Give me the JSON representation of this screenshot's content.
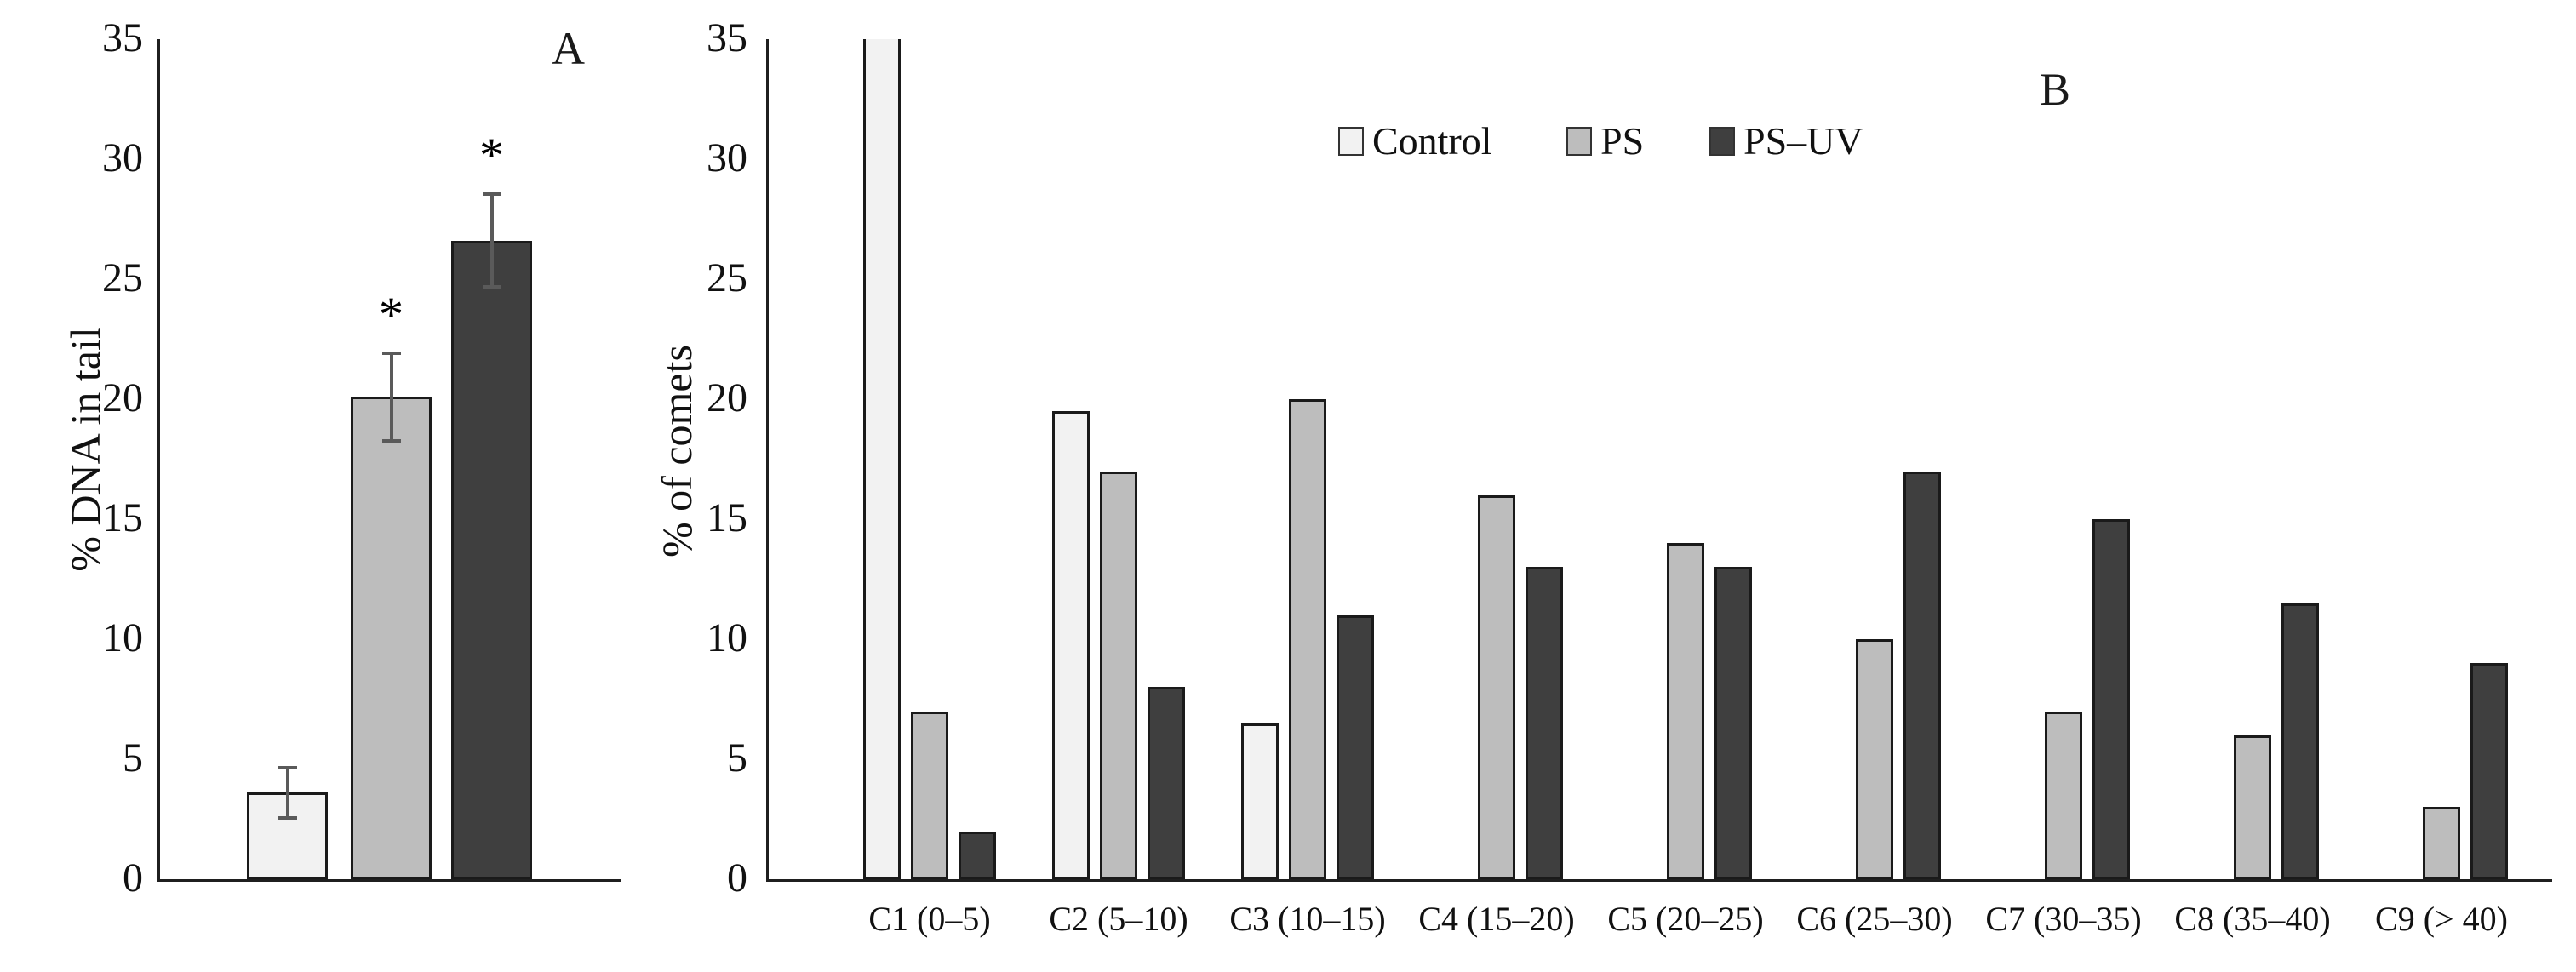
{
  "figure": {
    "background": "#ffffff",
    "axis_color": "#1f1f1f",
    "error_bar_color": "#5a5a5a"
  },
  "chart_data": [
    {
      "type": "bar",
      "panel_letter": "A",
      "ylabel": "% DNA in tail",
      "ylim": [
        0,
        35
      ],
      "ytick_step": 5,
      "grid": false,
      "categories": [
        "Control",
        "PS",
        "PS-UV"
      ],
      "values": [
        3.6,
        20.1,
        26.6
      ],
      "errors": [
        1.1,
        1.9,
        2.0
      ],
      "significance": [
        "",
        "*",
        "*"
      ],
      "bar_colors": [
        "#f2f2f2",
        "#bdbdbd",
        "#3f3f3f"
      ]
    },
    {
      "type": "bar",
      "panel_letter": "B",
      "ylabel": "% of comets",
      "ylim": [
        0,
        35
      ],
      "ytick_step": 5,
      "grid": false,
      "legend_position": "top",
      "categories": [
        "C1 (0–5)",
        "C2 (5–10)",
        "C3 (10–15)",
        "C4 (15–20)",
        "C5 (20–25)",
        "C6 (25–30)",
        "C7 (30–35)",
        "C8 (35–40)",
        "C9 (> 40)"
      ],
      "series": [
        {
          "name": "Control",
          "color": "#f2f2f2",
          "values": [
            35,
            19.5,
            6.5,
            0,
            0,
            0,
            0,
            0,
            0
          ],
          "clipped_at_axis_max": [
            true,
            false,
            false,
            false,
            false,
            false,
            false,
            false,
            false
          ]
        },
        {
          "name": "PS",
          "color": "#bdbdbd",
          "values": [
            7,
            17,
            20,
            16,
            14,
            10,
            7,
            6,
            3
          ]
        },
        {
          "name": "PS–UV",
          "color": "#3f3f3f",
          "values": [
            2,
            8,
            11,
            13,
            13,
            17,
            15,
            11.5,
            9
          ]
        }
      ]
    }
  ]
}
